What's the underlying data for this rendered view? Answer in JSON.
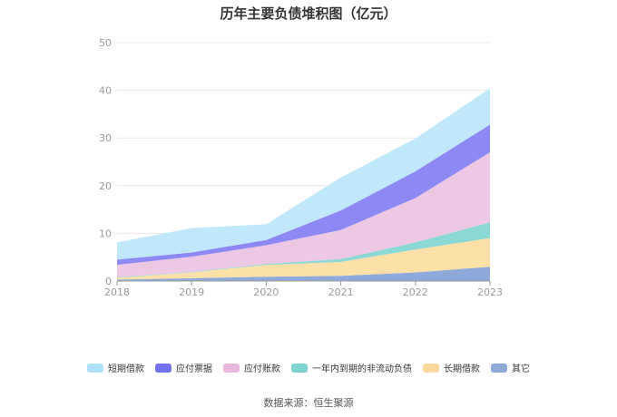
{
  "title": "历年主要负债堆积图（亿元）",
  "source": "数据来源：恒生聚源",
  "chart_data": {
    "type": "area",
    "stacked": true,
    "title": "历年主要负债堆积图（亿元）",
    "xlabel": "",
    "ylabel": "",
    "categories": [
      "2018",
      "2019",
      "2020",
      "2021",
      "2022",
      "2023"
    ],
    "ylim": [
      0,
      50
    ],
    "yticks": [
      0,
      10,
      20,
      30,
      40,
      50
    ],
    "grid": true,
    "legend_position": "bottom",
    "series": [
      {
        "name": "其它",
        "color": "#8eaadb",
        "values": [
          0.3,
          0.6,
          0.9,
          1.1,
          1.8,
          3.0
        ]
      },
      {
        "name": "长期借款",
        "color": "#fde0a8",
        "values": [
          0.4,
          1.2,
          2.5,
          2.9,
          4.8,
          6.0
        ]
      },
      {
        "name": "一年内到期的非流动负债",
        "color": "#8ad9d6",
        "values": [
          0.1,
          0.1,
          0.2,
          0.6,
          1.5,
          3.3
        ]
      },
      {
        "name": "应付账款",
        "color": "#edc7e3",
        "values": [
          2.6,
          3.2,
          3.9,
          6.1,
          9.3,
          14.7
        ]
      },
      {
        "name": "应付票据",
        "color": "#8c88f5",
        "values": [
          1.1,
          0.9,
          1.1,
          4.1,
          5.6,
          5.8
        ]
      },
      {
        "name": "短期借款",
        "color": "#bfe8fb",
        "values": [
          3.6,
          5.1,
          3.3,
          6.9,
          6.9,
          7.6
        ]
      }
    ]
  },
  "legend": [
    {
      "name": "短期借款",
      "color": "#aee0f9"
    },
    {
      "name": "应付票据",
      "color": "#7472f0"
    },
    {
      "name": "应付账款",
      "color": "#e9b8dc"
    },
    {
      "name": "一年内到期的非流动负债",
      "color": "#7dd3d0"
    },
    {
      "name": "长期借款",
      "color": "#fcd89c"
    },
    {
      "name": "其它",
      "color": "#8eaadb"
    }
  ]
}
